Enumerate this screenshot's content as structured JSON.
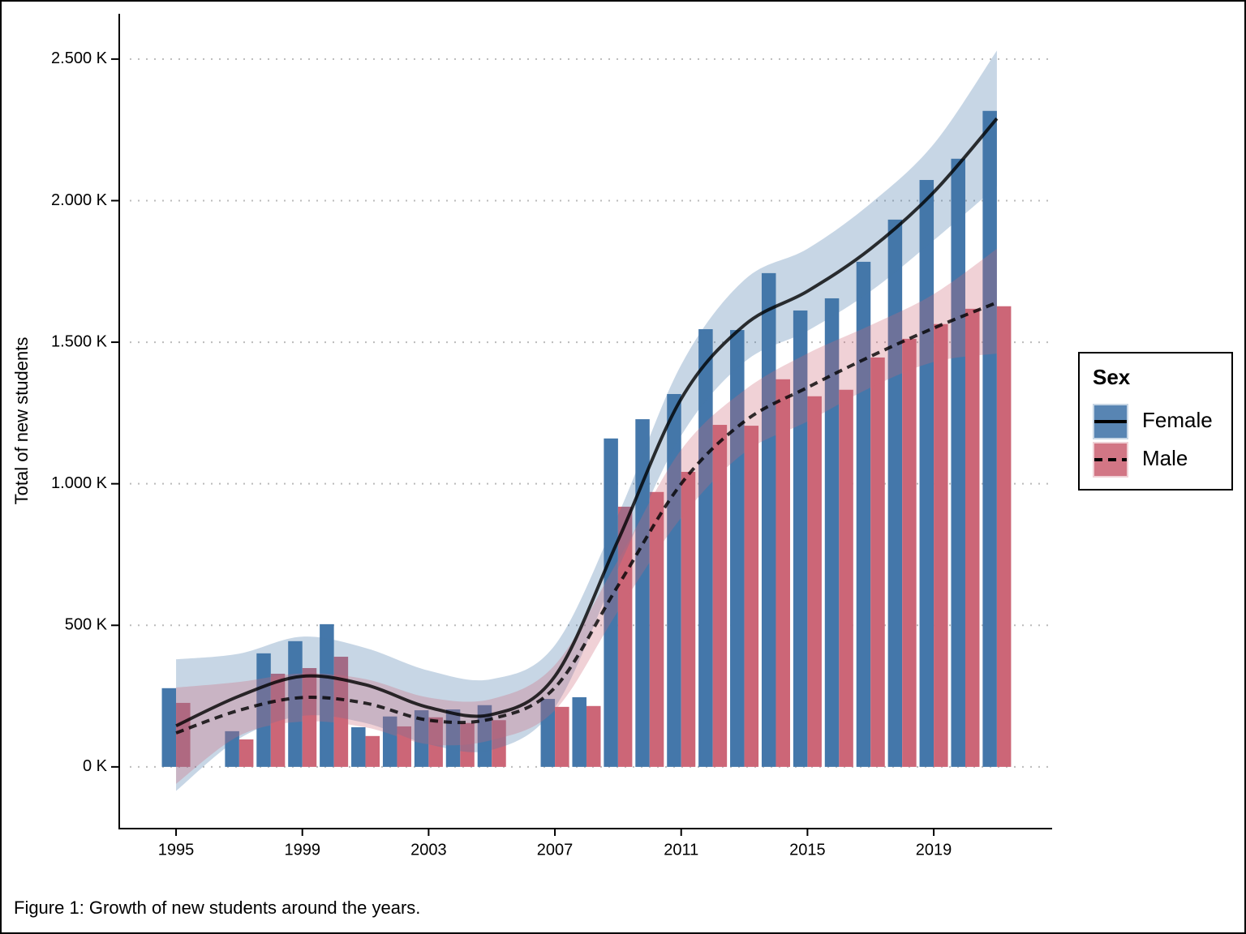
{
  "chart_data": {
    "type": "bar",
    "caption": "Figure 1: Growth of new students around the years.",
    "y_label": "Total of new students",
    "legend_title": "Sex",
    "legend": "right",
    "grid": "y",
    "x": [
      1995,
      1996,
      1997,
      1998,
      1999,
      2000,
      2001,
      2002,
      2003,
      2004,
      2005,
      2006,
      2007,
      2008,
      2009,
      2010,
      2011,
      2012,
      2013,
      2014,
      2015,
      2016,
      2017,
      2018,
      2019,
      2020,
      2021
    ],
    "xlim": [
      1993.2,
      2022.75
    ],
    "xticks": [
      1995,
      1999,
      2003,
      2007,
      2011,
      2015,
      2019
    ],
    "ylim": [
      -218,
      2660
    ],
    "yticks": [
      {
        "value": 0,
        "label": "0 K"
      },
      {
        "value": 500,
        "label": "500 K"
      },
      {
        "value": 1000,
        "label": "1.000 K"
      },
      {
        "value": 1500,
        "label": "1.500 K"
      },
      {
        "value": 2000,
        "label": "2.000 K"
      },
      {
        "value": 2500,
        "label": "2.500 K"
      }
    ],
    "smooth_x": [
      1995,
      1997,
      1999,
      2001,
      2003,
      2005,
      2007,
      2009,
      2011,
      2013,
      2015,
      2017,
      2019,
      2021
    ],
    "series": [
      {
        "name": "Female",
        "color": "#4477aa",
        "line_style": "solid",
        "values": [
          278,
          null,
          126,
          401,
          444,
          504,
          140,
          178,
          200,
          203,
          218,
          null,
          240,
          246,
          1160,
          1228,
          1317,
          1546,
          1543,
          1744,
          1612,
          1655,
          1784,
          1933,
          2073,
          2148,
          2317
        ],
        "smooth": [
          145,
          250,
          320,
          290,
          210,
          185,
          320,
          800,
          1300,
          1560,
          1680,
          1830,
          2030,
          2290
        ],
        "smooth_upper": [
          380,
          400,
          460,
          420,
          340,
          310,
          430,
          890,
          1420,
          1720,
          1830,
          1990,
          2200,
          2530
        ],
        "smooth_lower": [
          -85,
          100,
          180,
          155,
          80,
          60,
          210,
          700,
          1170,
          1430,
          1540,
          1680,
          1860,
          2050
        ]
      },
      {
        "name": "Male",
        "color": "#cc6677",
        "line_style": "dashed",
        "values": [
          226,
          null,
          97,
          329,
          349,
          389,
          109,
          143,
          175,
          155,
          165,
          null,
          212,
          215,
          919,
          971,
          1042,
          1208,
          1205,
          1369,
          1309,
          1332,
          1446,
          1512,
          1564,
          1618,
          1627
        ],
        "smooth": [
          120,
          200,
          245,
          225,
          165,
          170,
          280,
          640,
          1000,
          1220,
          1340,
          1450,
          1550,
          1640
        ],
        "smooth_upper": [
          280,
          300,
          330,
          310,
          245,
          240,
          360,
          730,
          1120,
          1330,
          1460,
          1560,
          1670,
          1830
        ],
        "smooth_lower": [
          -60,
          110,
          160,
          140,
          80,
          95,
          200,
          550,
          880,
          1110,
          1220,
          1340,
          1430,
          1460
        ]
      }
    ]
  }
}
